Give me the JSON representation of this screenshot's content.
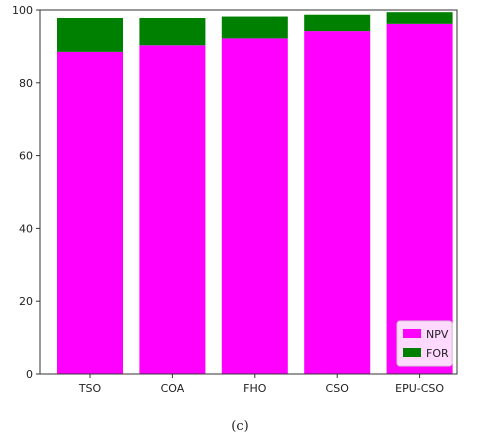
{
  "caption": "(c)",
  "chart_data": {
    "type": "bar",
    "stacked": true,
    "categories": [
      "TSO",
      "COA",
      "FHO",
      "CSO",
      "EPU-CSO"
    ],
    "series": [
      {
        "name": "NPV",
        "values": [
          88.5,
          90.3,
          92.2,
          94.2,
          96.2
        ],
        "color": "#ff00ff"
      },
      {
        "name": "FOR",
        "values": [
          9.3,
          7.5,
          6.0,
          4.5,
          3.2
        ],
        "color": "#008000"
      }
    ],
    "ylim": [
      0,
      100
    ],
    "yticks": [
      0,
      20,
      40,
      60,
      80,
      100
    ],
    "grid": false,
    "legend_position": "lower-right"
  }
}
